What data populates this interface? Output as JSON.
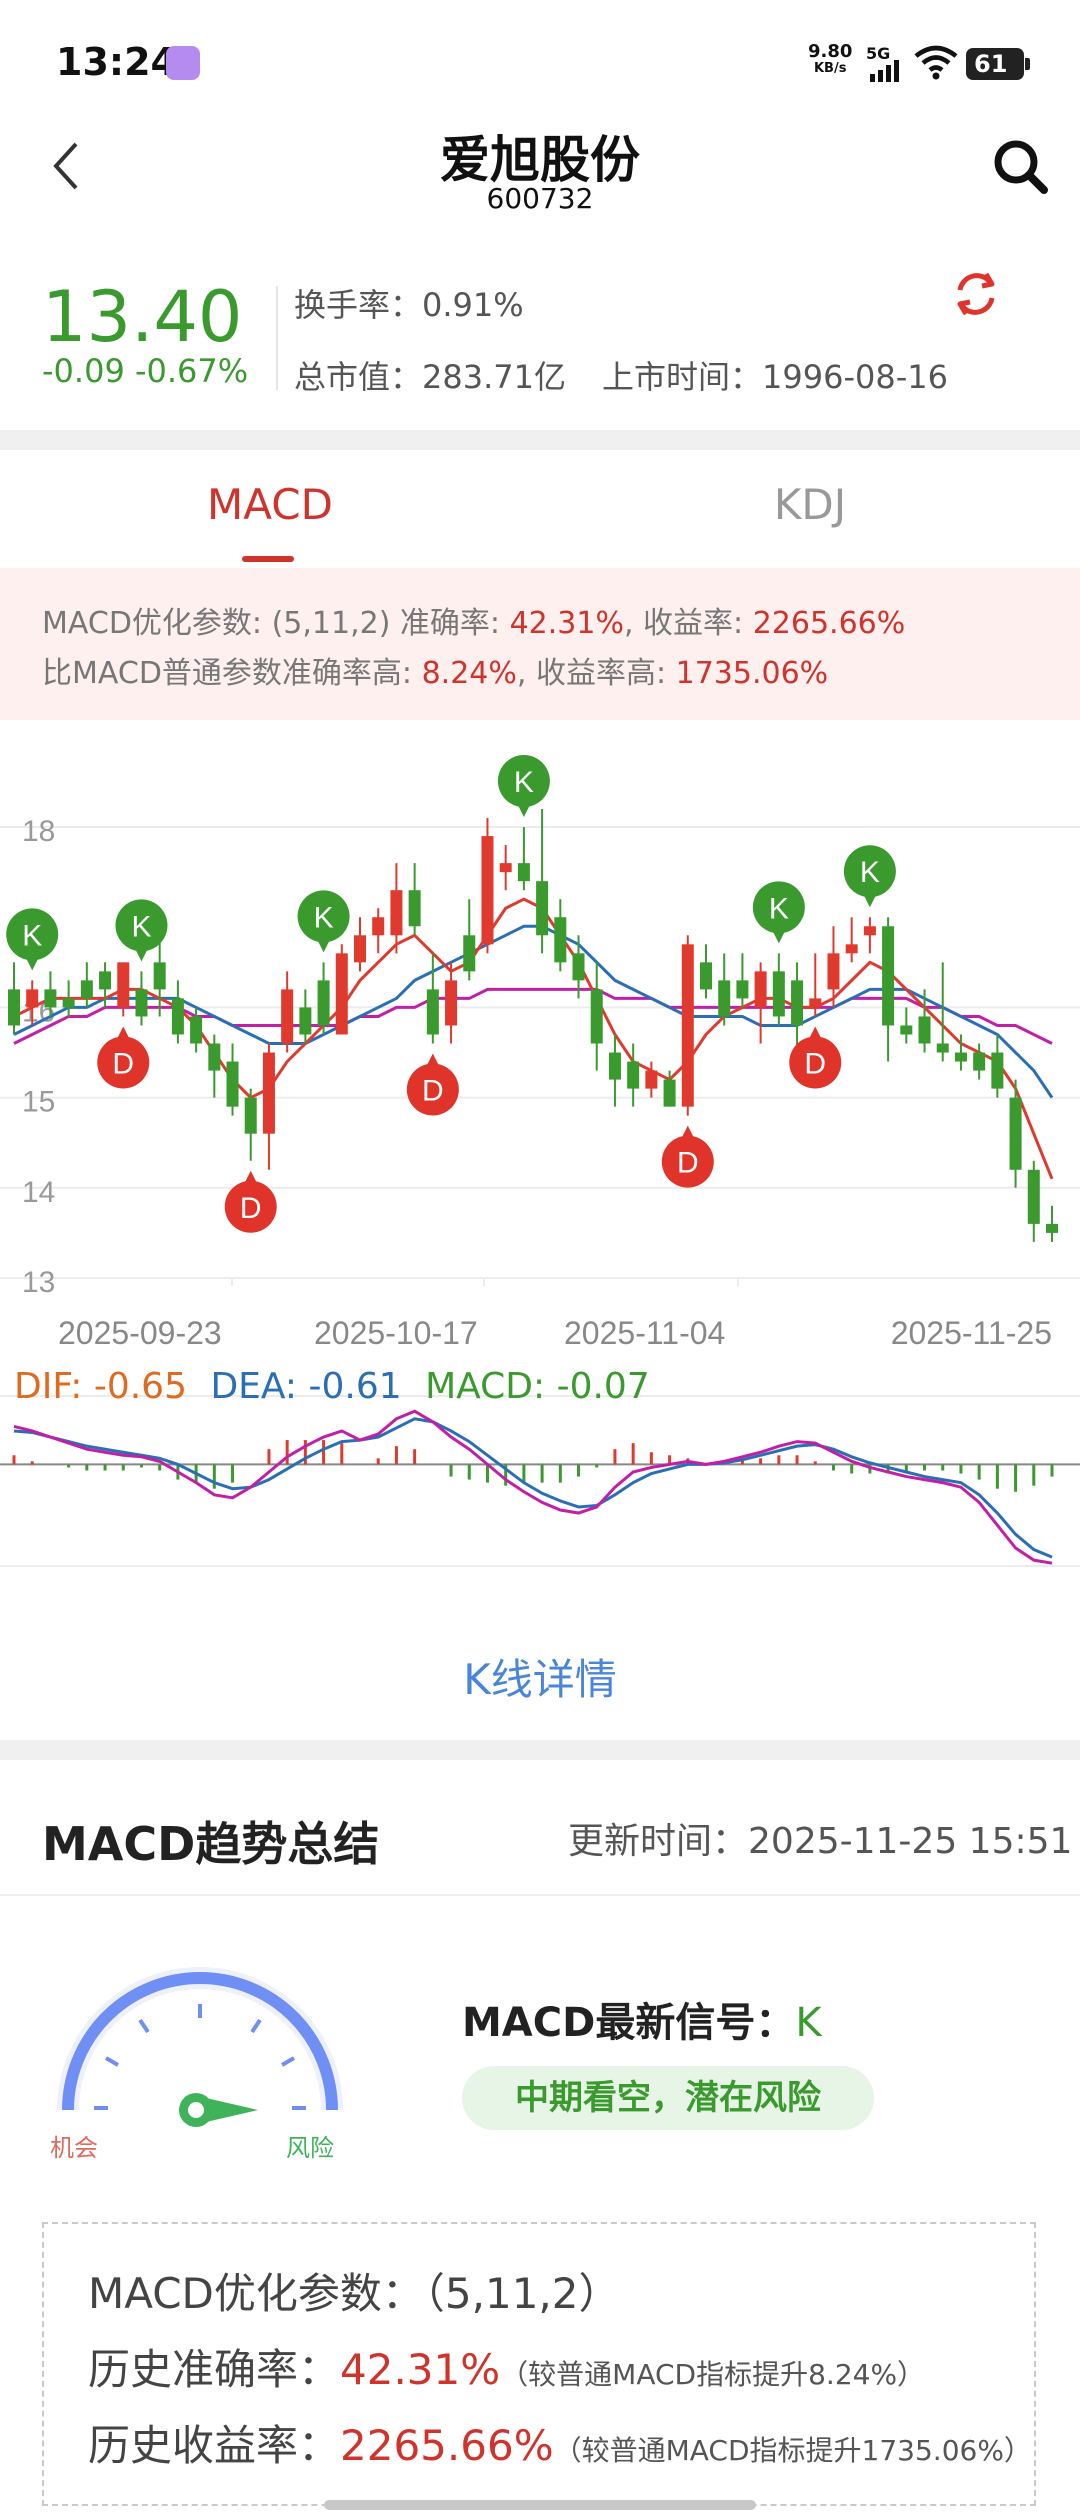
{
  "status_bar": {
    "time": "13:24",
    "net_speed_value": "9.80",
    "net_speed_unit": "KB/s",
    "network": "5G",
    "battery": "61"
  },
  "header": {
    "title": "爱旭股份",
    "code": "600732"
  },
  "quote": {
    "price": "13.40",
    "change": "-0.09 -0.67%",
    "turnover_label": "换手率：",
    "turnover": "0.91%",
    "mktcap_label": "总市值：",
    "mktcap": "283.71亿",
    "listing_label": "上市时间：",
    "listing": "1996-08-16"
  },
  "tabs": [
    {
      "label": "MACD",
      "active": true
    },
    {
      "label": "KDJ",
      "active": false
    }
  ],
  "banner": {
    "l1_prefix": "MACD优化参数: (5,11,2)  准确率: ",
    "l1_acc": "42.31%",
    "l1_mid": ", 收益率: ",
    "l1_ret": "2265.66%",
    "l2_prefix": "比MACD普通参数准确率高: ",
    "l2_acc": "8.24%",
    "l2_mid": ", 收益率高: ",
    "l2_ret": "1735.06%"
  },
  "chart_data": [
    {
      "type": "candlestick",
      "y_ticks": [
        "18",
        "16",
        "15",
        "14",
        "13"
      ],
      "ylim": [
        13,
        18.3
      ],
      "x_labels": [
        "2025-09-23",
        "2025-10-17",
        "2025-11-04",
        "2025-11-25"
      ],
      "grid": true,
      "candles": [
        {
          "o": 16.2,
          "h": 16.5,
          "l": 15.7,
          "c": 15.8
        },
        {
          "o": 16.0,
          "h": 16.3,
          "l": 15.8,
          "c": 16.2
        },
        {
          "o": 16.2,
          "h": 16.4,
          "l": 15.9,
          "c": 16.0
        },
        {
          "o": 16.1,
          "h": 16.3,
          "l": 15.9,
          "c": 16.0
        },
        {
          "o": 16.3,
          "h": 16.5,
          "l": 16.0,
          "c": 16.1
        },
        {
          "o": 16.4,
          "h": 16.5,
          "l": 16.0,
          "c": 16.2
        },
        {
          "o": 16.0,
          "h": 16.5,
          "l": 15.9,
          "c": 16.5
        },
        {
          "o": 16.2,
          "h": 16.4,
          "l": 15.8,
          "c": 15.9
        },
        {
          "o": 16.5,
          "h": 16.8,
          "l": 15.9,
          "c": 16.2
        },
        {
          "o": 16.1,
          "h": 16.3,
          "l": 15.6,
          "c": 15.7
        },
        {
          "o": 15.9,
          "h": 16.0,
          "l": 15.5,
          "c": 15.6
        },
        {
          "o": 15.6,
          "h": 15.7,
          "l": 15.0,
          "c": 15.3
        },
        {
          "o": 15.4,
          "h": 15.6,
          "l": 14.8,
          "c": 14.9
        },
        {
          "o": 15.0,
          "h": 15.1,
          "l": 14.3,
          "c": 14.6
        },
        {
          "o": 14.6,
          "h": 15.6,
          "l": 14.2,
          "c": 15.5
        },
        {
          "o": 15.6,
          "h": 16.4,
          "l": 15.5,
          "c": 16.2
        },
        {
          "o": 16.0,
          "h": 16.2,
          "l": 15.6,
          "c": 15.7
        },
        {
          "o": 16.3,
          "h": 16.5,
          "l": 15.7,
          "c": 15.8
        },
        {
          "o": 15.7,
          "h": 16.7,
          "l": 15.7,
          "c": 16.6
        },
        {
          "o": 16.5,
          "h": 17.0,
          "l": 16.4,
          "c": 16.8
        },
        {
          "o": 16.8,
          "h": 17.1,
          "l": 16.6,
          "c": 17.0
        },
        {
          "o": 16.8,
          "h": 17.6,
          "l": 16.6,
          "c": 17.3
        },
        {
          "o": 17.3,
          "h": 17.6,
          "l": 16.8,
          "c": 16.9
        },
        {
          "o": 16.2,
          "h": 16.6,
          "l": 15.6,
          "c": 15.7
        },
        {
          "o": 15.8,
          "h": 16.5,
          "l": 15.6,
          "c": 16.3
        },
        {
          "o": 16.8,
          "h": 17.2,
          "l": 16.3,
          "c": 16.4
        },
        {
          "o": 16.7,
          "h": 18.1,
          "l": 16.6,
          "c": 17.9
        },
        {
          "o": 17.5,
          "h": 17.8,
          "l": 17.3,
          "c": 17.6
        },
        {
          "o": 17.6,
          "h": 18.0,
          "l": 17.3,
          "c": 17.4
        },
        {
          "o": 17.4,
          "h": 18.2,
          "l": 16.6,
          "c": 16.8
        },
        {
          "o": 17.0,
          "h": 17.2,
          "l": 16.4,
          "c": 16.5
        },
        {
          "o": 16.6,
          "h": 16.8,
          "l": 16.1,
          "c": 16.3
        },
        {
          "o": 16.2,
          "h": 16.5,
          "l": 15.3,
          "c": 15.6
        },
        {
          "o": 15.5,
          "h": 15.7,
          "l": 14.9,
          "c": 15.2
        },
        {
          "o": 15.4,
          "h": 15.6,
          "l": 14.9,
          "c": 15.1
        },
        {
          "o": 15.1,
          "h": 15.4,
          "l": 15.0,
          "c": 15.3
        },
        {
          "o": 15.2,
          "h": 15.3,
          "l": 14.9,
          "c": 14.9
        },
        {
          "o": 14.9,
          "h": 16.8,
          "l": 14.8,
          "c": 16.7
        },
        {
          "o": 16.5,
          "h": 16.7,
          "l": 16.1,
          "c": 16.2
        },
        {
          "o": 16.3,
          "h": 16.6,
          "l": 15.8,
          "c": 15.9
        },
        {
          "o": 16.3,
          "h": 16.6,
          "l": 16.0,
          "c": 16.1
        },
        {
          "o": 16.0,
          "h": 16.5,
          "l": 15.6,
          "c": 16.4
        },
        {
          "o": 16.4,
          "h": 16.6,
          "l": 15.8,
          "c": 15.9
        },
        {
          "o": 16.3,
          "h": 16.5,
          "l": 15.3,
          "c": 15.8
        },
        {
          "o": 16.0,
          "h": 16.6,
          "l": 15.9,
          "c": 16.1
        },
        {
          "o": 16.2,
          "h": 16.9,
          "l": 16.0,
          "c": 16.6
        },
        {
          "o": 16.6,
          "h": 17.0,
          "l": 16.5,
          "c": 16.7
        },
        {
          "o": 16.8,
          "h": 17.0,
          "l": 16.6,
          "c": 16.9
        },
        {
          "o": 16.9,
          "h": 17.0,
          "l": 15.4,
          "c": 15.8
        },
        {
          "o": 15.8,
          "h": 16.0,
          "l": 15.6,
          "c": 15.7
        },
        {
          "o": 15.9,
          "h": 16.2,
          "l": 15.5,
          "c": 15.6
        },
        {
          "o": 15.6,
          "h": 16.5,
          "l": 15.4,
          "c": 15.5
        },
        {
          "o": 15.5,
          "h": 15.7,
          "l": 15.3,
          "c": 15.4
        },
        {
          "o": 15.5,
          "h": 15.6,
          "l": 15.2,
          "c": 15.3
        },
        {
          "o": 15.5,
          "h": 15.7,
          "l": 15.0,
          "c": 15.1
        },
        {
          "o": 15.0,
          "h": 15.2,
          "l": 14.0,
          "c": 14.2
        },
        {
          "o": 14.2,
          "h": 14.3,
          "l": 13.4,
          "c": 13.6
        },
        {
          "o": 13.6,
          "h": 13.8,
          "l": 13.4,
          "c": 13.5
        }
      ],
      "ma_short_color": "#e03a2f",
      "ma_mid_color": "#2a6fb5",
      "ma_long_color": "#c21fa6",
      "ma_short": [
        15.9,
        16.0,
        16.1,
        16.1,
        16.1,
        16.1,
        16.2,
        16.2,
        16.1,
        16.0,
        15.8,
        15.5,
        15.2,
        15.0,
        15.1,
        15.4,
        15.6,
        15.8,
        16.0,
        16.3,
        16.5,
        16.7,
        16.8,
        16.6,
        16.4,
        16.5,
        16.8,
        17.1,
        17.2,
        17.1,
        16.8,
        16.5,
        16.1,
        15.7,
        15.4,
        15.3,
        15.2,
        15.4,
        15.7,
        15.9,
        16.0,
        16.1,
        16.1,
        16.0,
        16.0,
        16.1,
        16.3,
        16.5,
        16.4,
        16.2,
        16.0,
        15.8,
        15.6,
        15.5,
        15.4,
        15.1,
        14.6,
        14.1
      ],
      "ma_mid": [
        15.7,
        15.8,
        15.9,
        16.0,
        16.0,
        16.1,
        16.1,
        16.1,
        16.1,
        16.1,
        16.0,
        15.9,
        15.8,
        15.7,
        15.6,
        15.6,
        15.6,
        15.7,
        15.8,
        15.9,
        16.0,
        16.1,
        16.3,
        16.4,
        16.5,
        16.6,
        16.7,
        16.8,
        16.9,
        16.9,
        16.8,
        16.7,
        16.5,
        16.3,
        16.2,
        16.1,
        16.0,
        15.9,
        15.9,
        15.9,
        15.9,
        15.8,
        15.8,
        15.8,
        15.9,
        16.0,
        16.1,
        16.2,
        16.2,
        16.2,
        16.1,
        16.0,
        15.9,
        15.8,
        15.7,
        15.5,
        15.3,
        15.0
      ],
      "ma_long": [
        15.6,
        15.7,
        15.8,
        15.9,
        15.9,
        16.0,
        16.0,
        16.0,
        16.0,
        16.0,
        15.9,
        15.9,
        15.8,
        15.8,
        15.8,
        15.8,
        15.8,
        15.8,
        15.8,
        15.9,
        15.9,
        16.0,
        16.0,
        16.1,
        16.1,
        16.1,
        16.2,
        16.2,
        16.2,
        16.2,
        16.2,
        16.2,
        16.2,
        16.1,
        16.1,
        16.1,
        16.0,
        16.0,
        16.0,
        16.0,
        16.0,
        16.0,
        16.0,
        16.0,
        16.0,
        16.0,
        16.1,
        16.1,
        16.1,
        16.1,
        16.0,
        16.0,
        15.9,
        15.9,
        15.8,
        15.8,
        15.7,
        15.6
      ],
      "markers": [
        {
          "label": "K",
          "index": 1,
          "kind": "sell"
        },
        {
          "label": "K",
          "index": 7,
          "kind": "sell"
        },
        {
          "label": "K",
          "index": 17,
          "kind": "sell"
        },
        {
          "label": "K",
          "index": 28,
          "kind": "sell"
        },
        {
          "label": "K",
          "index": 42,
          "kind": "sell"
        },
        {
          "label": "K",
          "index": 47,
          "kind": "sell"
        },
        {
          "label": "D",
          "index": 6,
          "kind": "buy"
        },
        {
          "label": "D",
          "index": 13,
          "kind": "buy"
        },
        {
          "label": "D",
          "index": 23,
          "kind": "buy"
        },
        {
          "label": "D",
          "index": 37,
          "kind": "buy"
        },
        {
          "label": "D",
          "index": 44,
          "kind": "buy"
        }
      ]
    },
    {
      "type": "line",
      "indicator": "MACD",
      "dif_label": "DIF: ",
      "dif": "-0.65",
      "dea_label": "DEA: ",
      "dea": "-0.61",
      "macd_label": "MACD: ",
      "macd": "-0.07",
      "dif_color": "#e06a1f",
      "dea_color": "#2a6fb5",
      "macd_color": "#3a9a2e",
      "dif_series": [
        0.25,
        0.22,
        0.18,
        0.14,
        0.1,
        0.08,
        0.06,
        0.05,
        0.02,
        -0.05,
        -0.12,
        -0.2,
        -0.22,
        -0.15,
        -0.05,
        0.05,
        0.12,
        0.18,
        0.22,
        0.16,
        0.2,
        0.3,
        0.35,
        0.28,
        0.18,
        0.1,
        0.0,
        -0.1,
        -0.18,
        -0.25,
        -0.3,
        -0.32,
        -0.28,
        -0.15,
        -0.05,
        -0.02,
        0.0,
        0.02,
        0.0,
        0.02,
        0.05,
        0.08,
        0.12,
        0.15,
        0.14,
        0.08,
        0.02,
        -0.02,
        -0.05,
        -0.08,
        -0.1,
        -0.12,
        -0.15,
        -0.25,
        -0.4,
        -0.55,
        -0.63,
        -0.65
      ],
      "dea_series": [
        0.22,
        0.21,
        0.18,
        0.15,
        0.12,
        0.1,
        0.08,
        0.06,
        0.04,
        0.0,
        -0.06,
        -0.12,
        -0.16,
        -0.15,
        -0.1,
        -0.03,
        0.04,
        0.1,
        0.15,
        0.16,
        0.18,
        0.24,
        0.3,
        0.28,
        0.22,
        0.15,
        0.06,
        -0.03,
        -0.12,
        -0.19,
        -0.24,
        -0.28,
        -0.27,
        -0.2,
        -0.12,
        -0.06,
        -0.03,
        0.0,
        0.0,
        0.01,
        0.03,
        0.06,
        0.09,
        0.12,
        0.13,
        0.1,
        0.05,
        0.01,
        -0.02,
        -0.05,
        -0.08,
        -0.1,
        -0.12,
        -0.2,
        -0.32,
        -0.46,
        -0.56,
        -0.61
      ],
      "ylim": [
        -0.8,
        0.45
      ]
    }
  ],
  "indicator_line": {
    "dif_label": "DIF: ",
    "dif": "-0.65",
    "dea_label": "DEA: ",
    "dea": "-0.61",
    "macd_label": "MACD: ",
    "macd": "-0.07"
  },
  "k_detail": "K线详情",
  "summary": {
    "title": "MACD趋势总结",
    "updated_label": "更新时间：",
    "updated": "2025-11-25 15:51",
    "gauge_left": "机会",
    "gauge_right": "风险",
    "signal_label": "MACD最新信号：",
    "signal": "K",
    "pill": "中期看空，潜在风险",
    "param_line": "MACD优化参数：（5,11,2）",
    "acc_label": "历史准确率：",
    "acc": "42.31%",
    "acc_note": "（较普通MACD指标提升8.24%）",
    "ret_label": "历史收益率：",
    "ret": "2265.66%",
    "ret_note": "（较普通MACD指标提升1735.06%）"
  },
  "colors": {
    "up": "#e03a2f",
    "down": "#3a9a2e",
    "accent": "#d0332c",
    "link": "#4a86d8"
  },
  "icons": {
    "back": "chevron-left-icon",
    "search": "search-icon",
    "refresh": "refresh-icon"
  }
}
